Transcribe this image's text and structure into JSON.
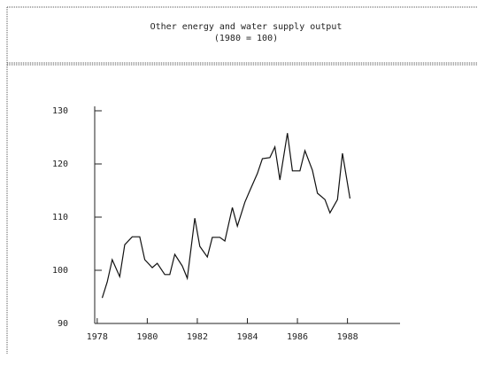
{
  "chart_data": {
    "type": "line",
    "title": "Other energy and water supply output",
    "subtitle": "(1980 = 100)",
    "x": [
      1978.2,
      1978.4,
      1978.6,
      1978.9,
      1979.1,
      1979.4,
      1979.7,
      1979.9,
      1980.2,
      1980.4,
      1980.7,
      1980.9,
      1981.1,
      1981.4,
      1981.6,
      1981.9,
      1982.1,
      1982.4,
      1982.6,
      1982.9,
      1983.1,
      1983.4,
      1983.6,
      1983.9,
      1984.1,
      1984.4,
      1984.6,
      1984.9,
      1985.1,
      1985.3,
      1985.6,
      1985.8,
      1986.1,
      1986.3,
      1986.6,
      1986.8,
      1987.1,
      1987.3,
      1987.6,
      1987.8,
      1988.1
    ],
    "series": [
      {
        "color": "#111111",
        "values": [
          94.8,
          97.8,
          102,
          98.8,
          104.8,
          106.3,
          106.3,
          102,
          100.5,
          101.3,
          99.2,
          99.2,
          103,
          100.8,
          98.5,
          109.8,
          104.5,
          102.5,
          106.2,
          106.2,
          105.5,
          111.8,
          108.3,
          112.8,
          115,
          118.2,
          121,
          121.2,
          123.2,
          117,
          125.8,
          118.7,
          118.7,
          122.5,
          118.8,
          114.5,
          113.3,
          110.8,
          113.3,
          122,
          113.5
        ]
      }
    ],
    "xlim": [
      1977.9,
      1990.1
    ],
    "xticks": [
      1978,
      1980,
      1982,
      1984,
      1986,
      1988
    ],
    "ylim": [
      90,
      130
    ],
    "yticks": [
      90,
      100,
      110,
      120,
      130
    ]
  }
}
